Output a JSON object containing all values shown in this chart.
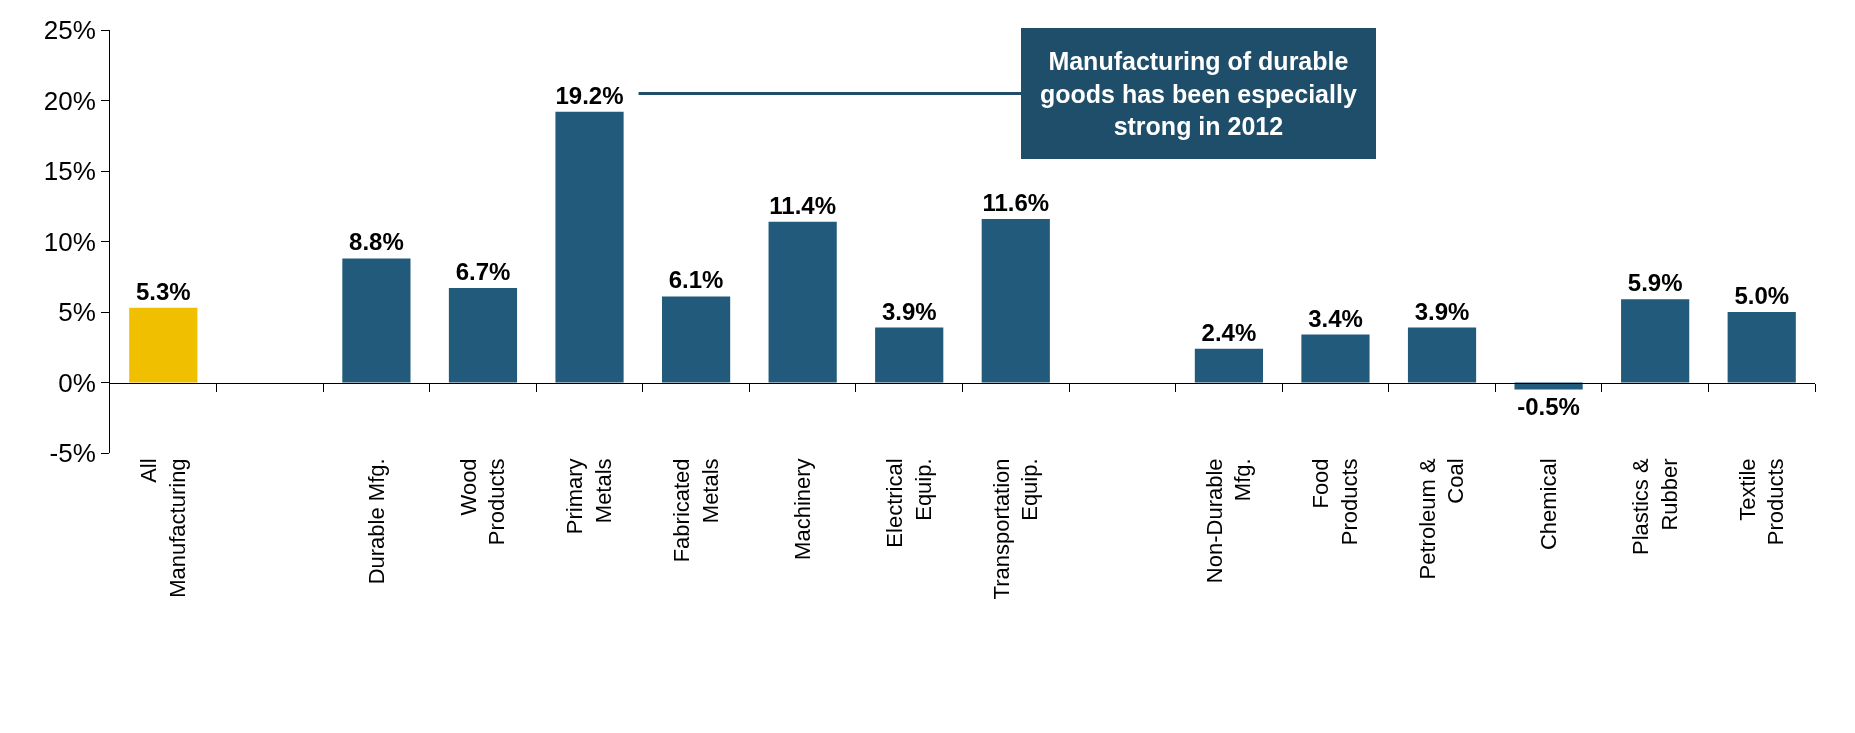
{
  "chart_data": {
    "type": "bar",
    "categories": [
      "All Manufacturing",
      null,
      "Durable Mfg.",
      "Wood Products",
      "Primary Metals",
      "Fabricated Metals",
      "Machinery",
      "Electrical Equip.",
      "Transportation Equip.",
      null,
      "Non-Durable Mfg.",
      "Food Products",
      "Petroleum & Coal",
      "Chemical",
      "Plastics & Rubber",
      "Textile Products"
    ],
    "values": [
      5.3,
      null,
      8.8,
      6.7,
      19.2,
      6.1,
      11.4,
      3.9,
      11.6,
      null,
      2.4,
      3.4,
      3.9,
      -0.5,
      5.9,
      5.0
    ],
    "colors": [
      "#f0c000",
      null,
      "#215a7b",
      "#215a7b",
      "#215a7b",
      "#215a7b",
      "#215a7b",
      "#215a7b",
      "#215a7b",
      null,
      "#215a7b",
      "#215a7b",
      "#215a7b",
      "#215a7b",
      "#215a7b",
      "#215a7b"
    ],
    "value_labels": [
      "5.3%",
      null,
      "8.8%",
      "6.7%",
      "19.2%",
      "6.1%",
      "11.4%",
      "3.9%",
      "11.6%",
      null,
      "2.4%",
      "3.4%",
      "3.9%",
      "-0.5%",
      "5.9%",
      "5.0%"
    ],
    "ylim": [
      -5,
      25
    ],
    "yticks": [
      {
        "value": -5,
        "label": "-5%"
      },
      {
        "value": 0,
        "label": "0%"
      },
      {
        "value": 5,
        "label": "5%"
      },
      {
        "value": 10,
        "label": "10%"
      },
      {
        "value": 15,
        "label": "15%"
      },
      {
        "value": 20,
        "label": "20%"
      },
      {
        "value": 25,
        "label": "25%"
      }
    ],
    "annotations": [
      "Manufacturing of durable goods has been especially strong in 2012"
    ],
    "orientation": "vertical"
  }
}
